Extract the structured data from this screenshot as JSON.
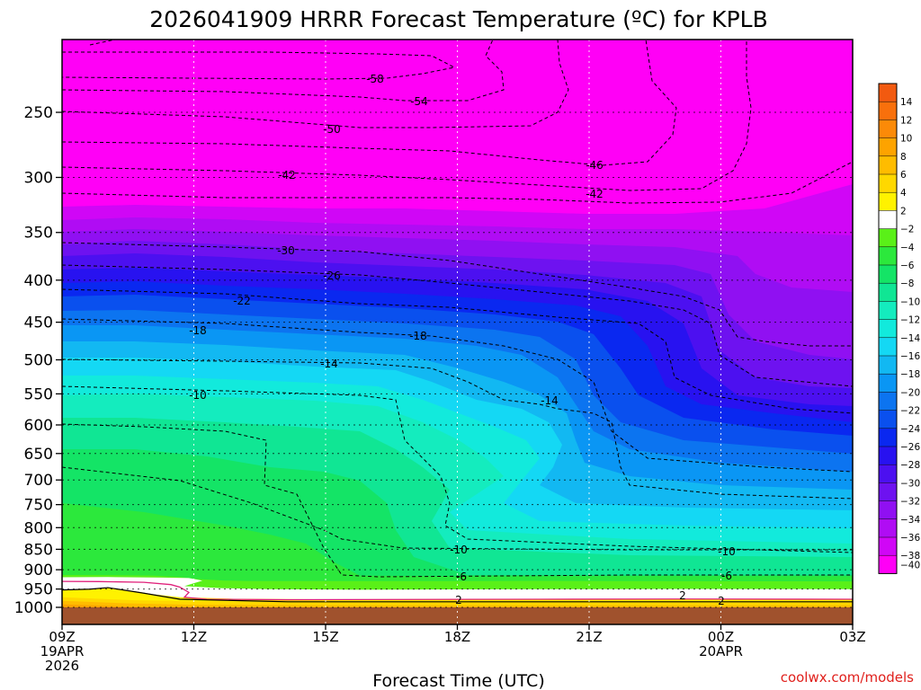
{
  "chart_data": {
    "type": "heatmap",
    "title": "2026041909 HRRR Forecast Temperature (ºC) for KPLB",
    "xlabel": "Forecast Time (UTC)",
    "ylabel": "",
    "y_scale": "log",
    "y_inverted": true,
    "ylim": [
      1000,
      200
    ],
    "yticks": [
      250,
      300,
      350,
      400,
      450,
      500,
      550,
      600,
      650,
      700,
      750,
      800,
      850,
      900,
      950,
      1000
    ],
    "xlim": [
      0,
      18
    ],
    "xticks": [
      {
        "x": 0,
        "lines": [
          "09Z",
          "19APR",
          "2026"
        ]
      },
      {
        "x": 3,
        "lines": [
          "12Z"
        ]
      },
      {
        "x": 6,
        "lines": [
          "15Z"
        ]
      },
      {
        "x": 9,
        "lines": [
          "18Z"
        ]
      },
      {
        "x": 12,
        "lines": [
          "21Z"
        ]
      },
      {
        "x": 15,
        "lines": [
          "00Z",
          "20APR"
        ]
      },
      {
        "x": 18,
        "lines": [
          "03Z"
        ]
      }
    ],
    "grid": true,
    "colorbar": {
      "placement": "right",
      "levels": [
        14,
        12,
        10,
        8,
        6,
        4,
        2,
        -2,
        -4,
        -6,
        -8,
        -10,
        -12,
        -14,
        -16,
        -18,
        -20,
        -22,
        -24,
        -26,
        -28,
        -30,
        -32,
        -34,
        -36,
        -38,
        -40
      ],
      "colors": [
        "#f25a10",
        "#f8700c",
        "#fb8a08",
        "#fda300",
        "#ffbc00",
        "#ffd800",
        "#fff200",
        "#ffffff",
        "#5af018",
        "#2ce83c",
        "#14e466",
        "#10e694",
        "#14ecbe",
        "#12eadc",
        "#14d8f4",
        "#12b8f2",
        "#0a96f4",
        "#0c74f0",
        "#0a50ee",
        "#0a28f0",
        "#2812f0",
        "#4c10f0",
        "#6e12f0",
        "#9010f2",
        "#b00cf4",
        "#d006f6",
        "#ff00f6"
      ]
    },
    "contours": [
      {
        "label": "-58",
        "x": 6.4
      },
      {
        "label": "-54",
        "x": 8.1
      },
      {
        "label": "-50",
        "x": 6.1
      },
      {
        "label": "-46",
        "x": 12.2
      },
      {
        "label": "-42",
        "x": 5.0
      },
      {
        "label": "-42",
        "x": 12.2
      },
      {
        "label": "-30",
        "x": 5.1
      },
      {
        "label": "-26",
        "x": 6.1
      },
      {
        "label": "-22",
        "x": 4.1
      },
      {
        "label": "-18",
        "x": 3.0
      },
      {
        "label": "-18",
        "x": 8.0
      },
      {
        "label": "-14",
        "x": 6.1
      },
      {
        "label": "-14",
        "x": 11.1
      },
      {
        "label": "-10",
        "x": 3.1
      },
      {
        "label": "-10",
        "x": 9.0
      },
      {
        "label": "-10",
        "x": 15.2
      },
      {
        "label": "-6",
        "x": 9.0
      },
      {
        "label": "-6",
        "x": 15.2
      },
      {
        "label": "2",
        "x": 14.1
      },
      {
        "label": "2",
        "x": 9.0
      },
      {
        "label": "2",
        "x": 15.0
      }
    ]
  },
  "credit": "coolwx.com/models"
}
